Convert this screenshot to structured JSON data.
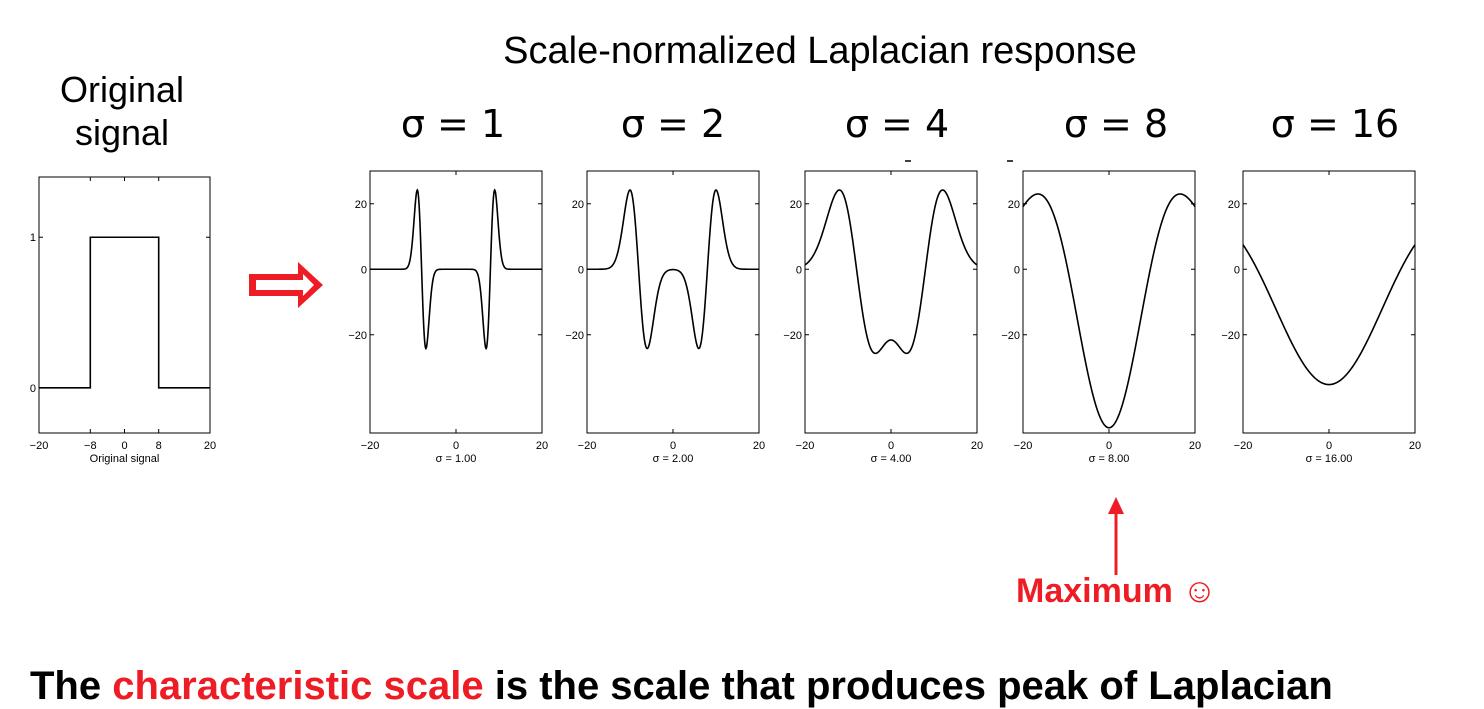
{
  "title": "Scale-normalized Laplacian response",
  "original": {
    "title_line1": "Original",
    "title_line2": "signal"
  },
  "sigma_headings": [
    "σ = 1",
    "σ = 2",
    "σ = 4",
    "σ = 8",
    "σ = 16"
  ],
  "maximum_label": "Maximum ☺",
  "bottom_text": {
    "part1": "The ",
    "highlight": "characteristic scale",
    "part2": " is the scale that produces peak of Laplacian"
  },
  "colors": {
    "accent": "#ee1c24",
    "curve": "#000000"
  },
  "chart_data": [
    {
      "type": "line",
      "xlabel": "Original signal",
      "xlim": [
        -20,
        20
      ],
      "ylim": [
        -0.3,
        1.4
      ],
      "xticks": [
        -20,
        -8,
        0,
        8,
        20
      ],
      "yticks": [
        0,
        1
      ],
      "function": "box",
      "box_halfwidth": 8,
      "series": [
        {
          "x": [
            -20,
            -8,
            -8,
            8,
            8,
            20
          ],
          "y": [
            0,
            0,
            1,
            1,
            0,
            0
          ]
        }
      ]
    },
    {
      "type": "line",
      "xlabel": "σ = 1.00",
      "sigma": 1,
      "xlim": [
        -20,
        20
      ],
      "ylim": [
        -50,
        30
      ],
      "xticks": [
        -20,
        0,
        20
      ],
      "yticks": [
        20,
        0,
        -20
      ]
    },
    {
      "type": "line",
      "xlabel": "σ = 2.00",
      "sigma": 2,
      "xlim": [
        -20,
        20
      ],
      "ylim": [
        -50,
        30
      ],
      "xticks": [
        -20,
        0,
        20
      ],
      "yticks": [
        20,
        0,
        -20
      ]
    },
    {
      "type": "line",
      "xlabel": "σ = 4.00",
      "sigma": 4,
      "xlim": [
        -20,
        20
      ],
      "ylim": [
        -50,
        30
      ],
      "xticks": [
        -20,
        0,
        20
      ],
      "yticks": [
        20,
        0,
        -20
      ]
    },
    {
      "type": "line",
      "xlabel": "σ = 8.00",
      "sigma": 8,
      "xlim": [
        -20,
        20
      ],
      "ylim": [
        -50,
        30
      ],
      "xticks": [
        -20,
        0,
        20
      ],
      "yticks": [
        20,
        0,
        -20
      ]
    },
    {
      "type": "line",
      "xlabel": "σ = 16.00",
      "sigma": 16,
      "xlim": [
        -20,
        20
      ],
      "ylim": [
        -50,
        30
      ],
      "xticks": [
        -20,
        0,
        20
      ],
      "yticks": [
        20,
        0,
        -20
      ]
    }
  ]
}
